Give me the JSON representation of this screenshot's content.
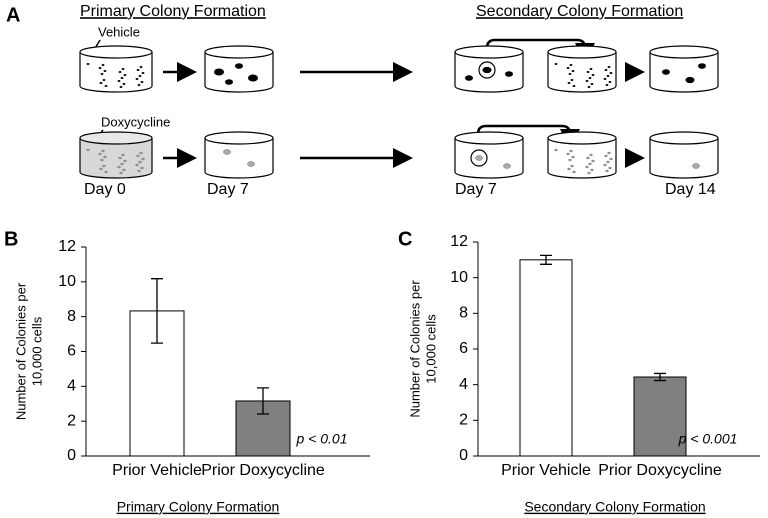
{
  "diagram": {
    "panel_label": "A",
    "left_title": "Primary Colony Formation",
    "right_title": "Secondary Colony Formation",
    "treatments": [
      "Vehicle",
      "Doxycycline"
    ],
    "days": [
      "Day 0",
      "Day 7",
      "Day 7",
      "Day 14"
    ]
  },
  "chart_data": [
    {
      "type": "bar",
      "panel_label": "B",
      "ylabel": [
        "Number of Colonies per",
        "10,000 cells"
      ],
      "xlabel": "Primary Colony Formation",
      "categories": [
        "Prior Vehicle",
        "Prior Doxycycline"
      ],
      "values": [
        8.33,
        3.16
      ],
      "errors": [
        1.85,
        0.75
      ],
      "colors": [
        "#ffffff",
        "#808080"
      ],
      "ylim": [
        0,
        12
      ],
      "yticks": [
        0,
        2,
        4,
        6,
        8,
        10,
        12
      ],
      "annotation": "p < 0.01"
    },
    {
      "type": "bar",
      "panel_label": "C",
      "ylabel": [
        "Number of Colonies per",
        "10,000 cells"
      ],
      "xlabel": "Secondary Colony Formation",
      "categories": [
        "Prior Vehicle",
        "Prior Doxycycline"
      ],
      "values": [
        11.0,
        4.43
      ],
      "errors": [
        0.25,
        0.2
      ],
      "colors": [
        "#ffffff",
        "#808080"
      ],
      "ylim": [
        0,
        12
      ],
      "yticks": [
        0,
        2,
        4,
        6,
        8,
        10,
        12
      ],
      "annotation": "p < 0.001"
    }
  ]
}
